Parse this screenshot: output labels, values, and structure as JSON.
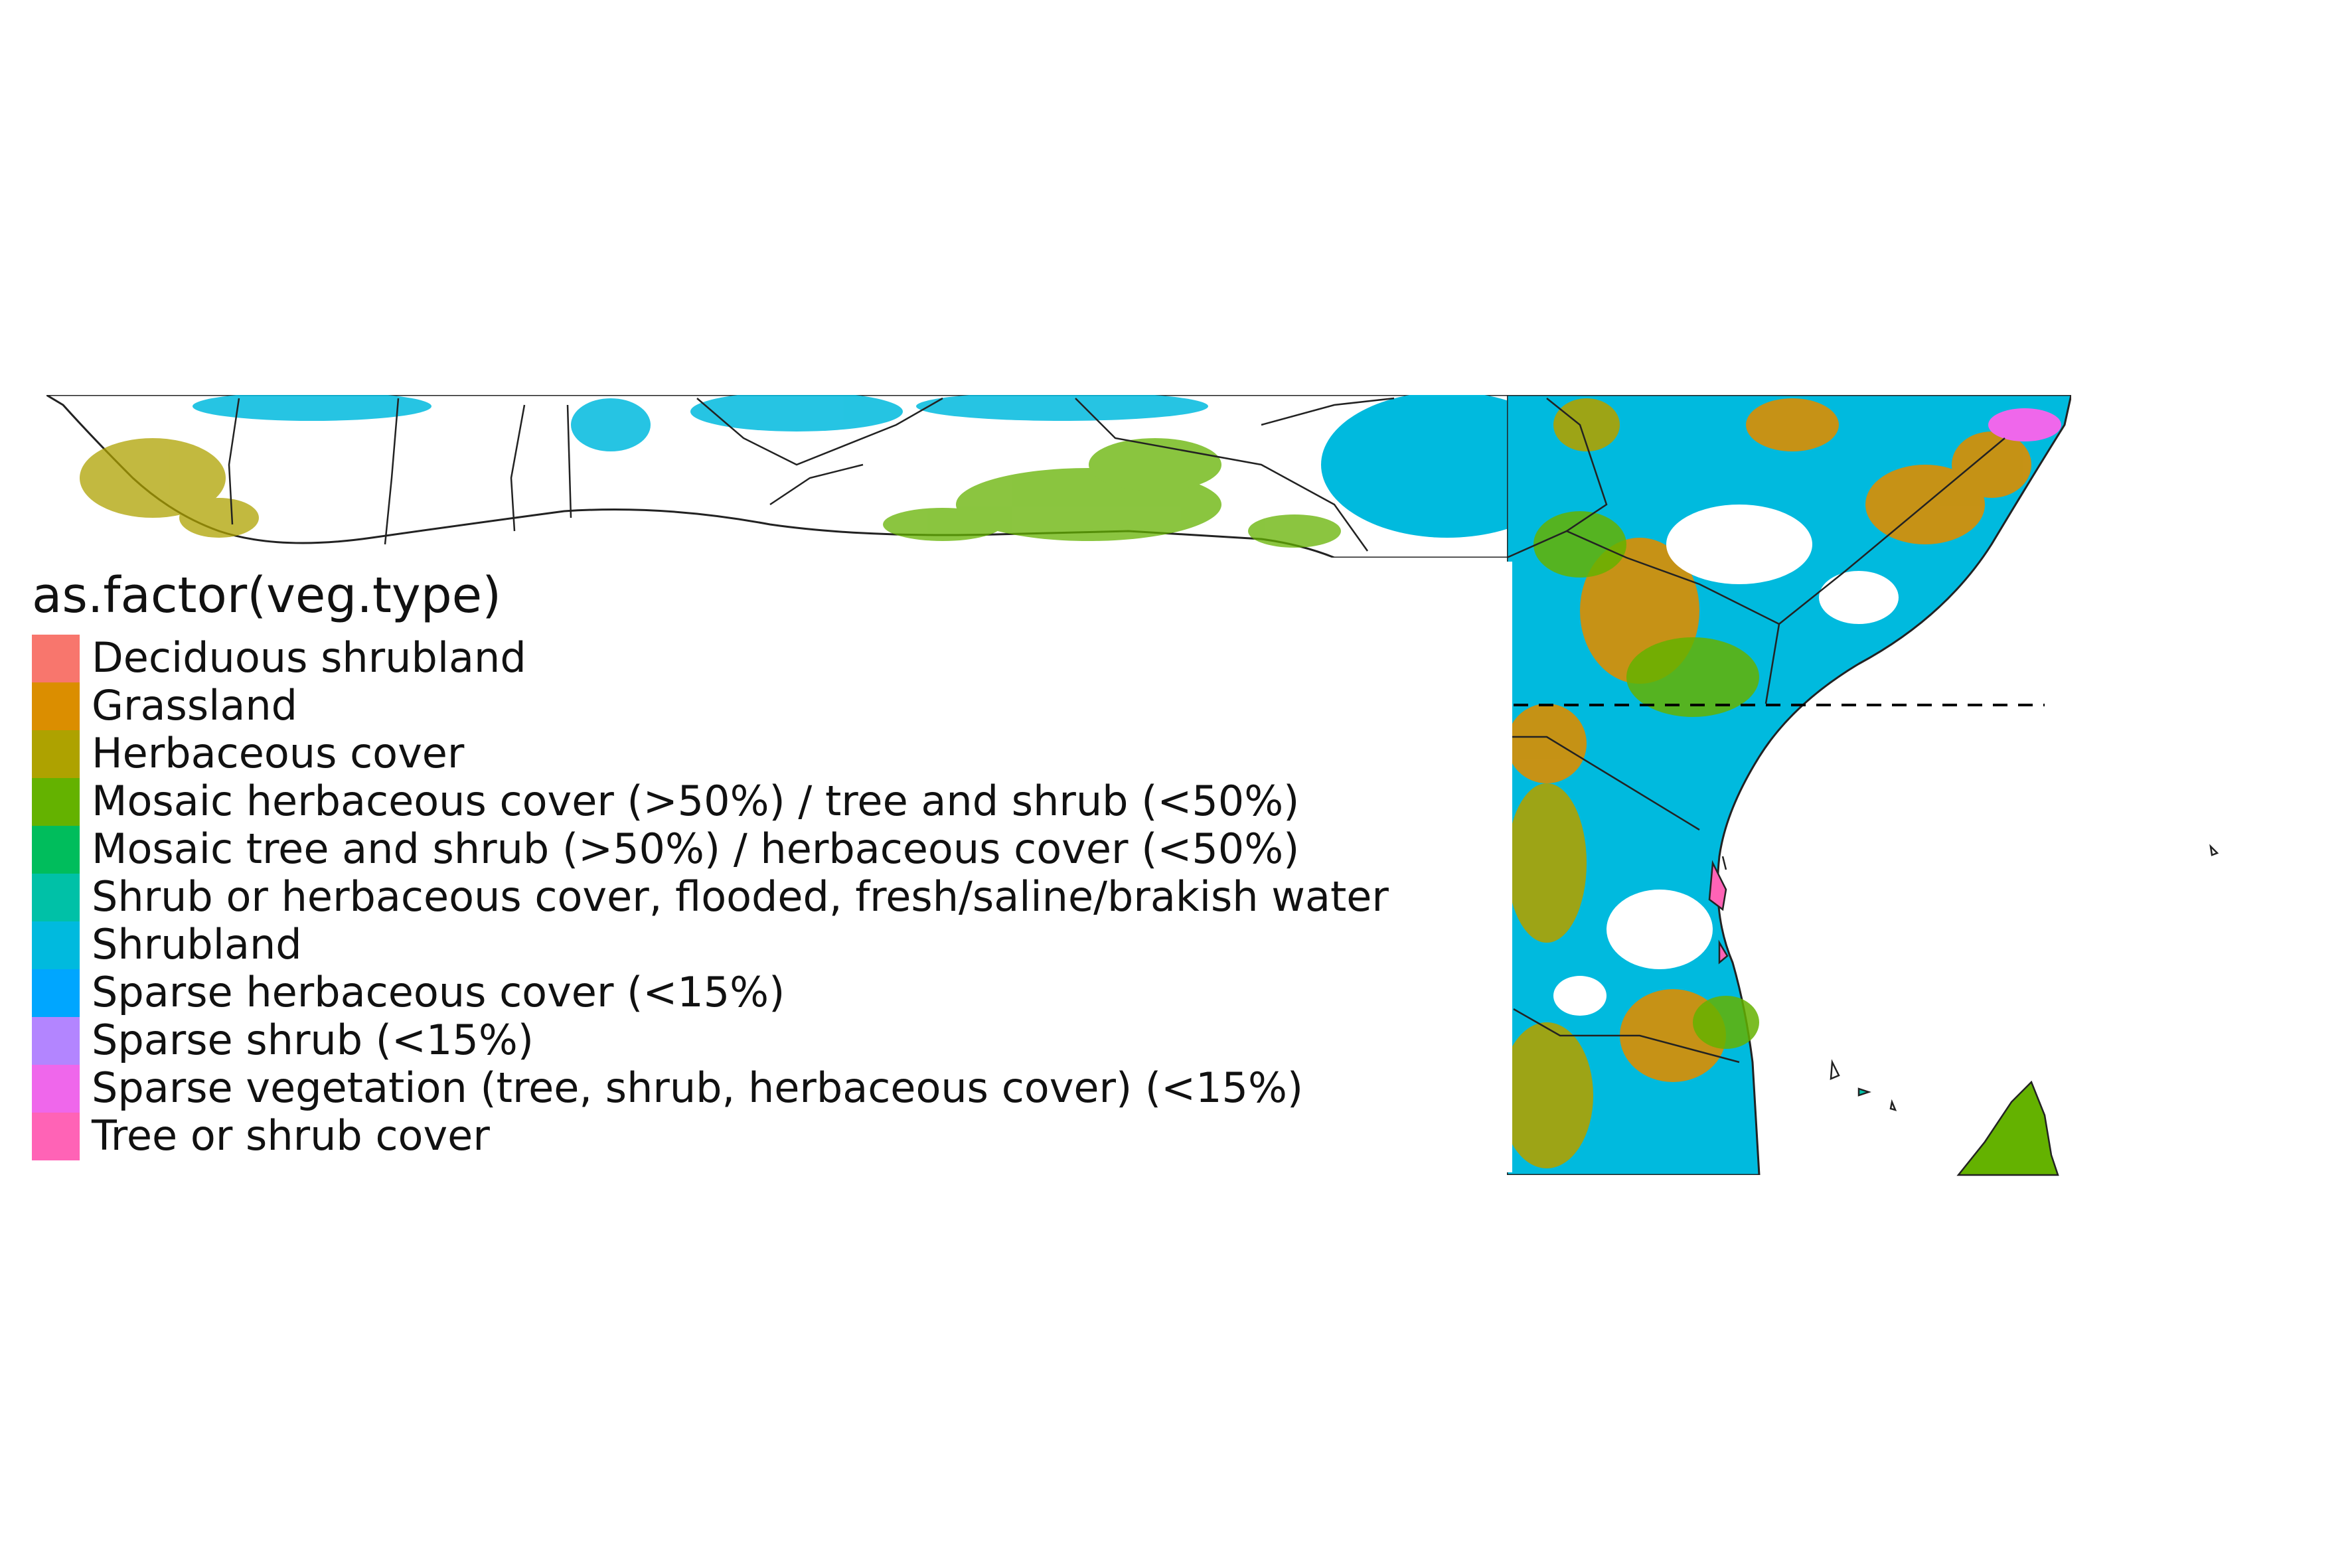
{
  "legend": {
    "title": "as.factor(veg.type)",
    "items": [
      {
        "label": "Deciduous shrubland",
        "color": "#F8766D"
      },
      {
        "label": "Grassland",
        "color": "#DB8E00"
      },
      {
        "label": "Herbaceous cover",
        "color": "#AEA200"
      },
      {
        "label": "Mosaic herbaceous cover (>50%) / tree and shrub (<50%)",
        "color": "#64B200"
      },
      {
        "label": "Mosaic tree and shrub (>50%) / herbaceous cover (<50%)",
        "color": "#00BD5C"
      },
      {
        "label": "Shrub or herbaceous cover, flooded, fresh/saline/brakish water",
        "color": "#00C1A7"
      },
      {
        "label": "Shrubland",
        "color": "#00BADE"
      },
      {
        "label": "Sparse herbaceous cover (<15%)",
        "color": "#00A6FF"
      },
      {
        "label": "Sparse shrub (<15%)",
        "color": "#B385FF"
      },
      {
        "label": "Sparse vegetation (tree, shrub, herbaceous cover) (<15%)",
        "color": "#EF67EB"
      },
      {
        "label": "Tree or shrub cover",
        "color": "#FF63B6"
      }
    ]
  },
  "map": {
    "region": "Africa (West to East coast)",
    "reference_line": "dashed horizontal line (equator)"
  }
}
